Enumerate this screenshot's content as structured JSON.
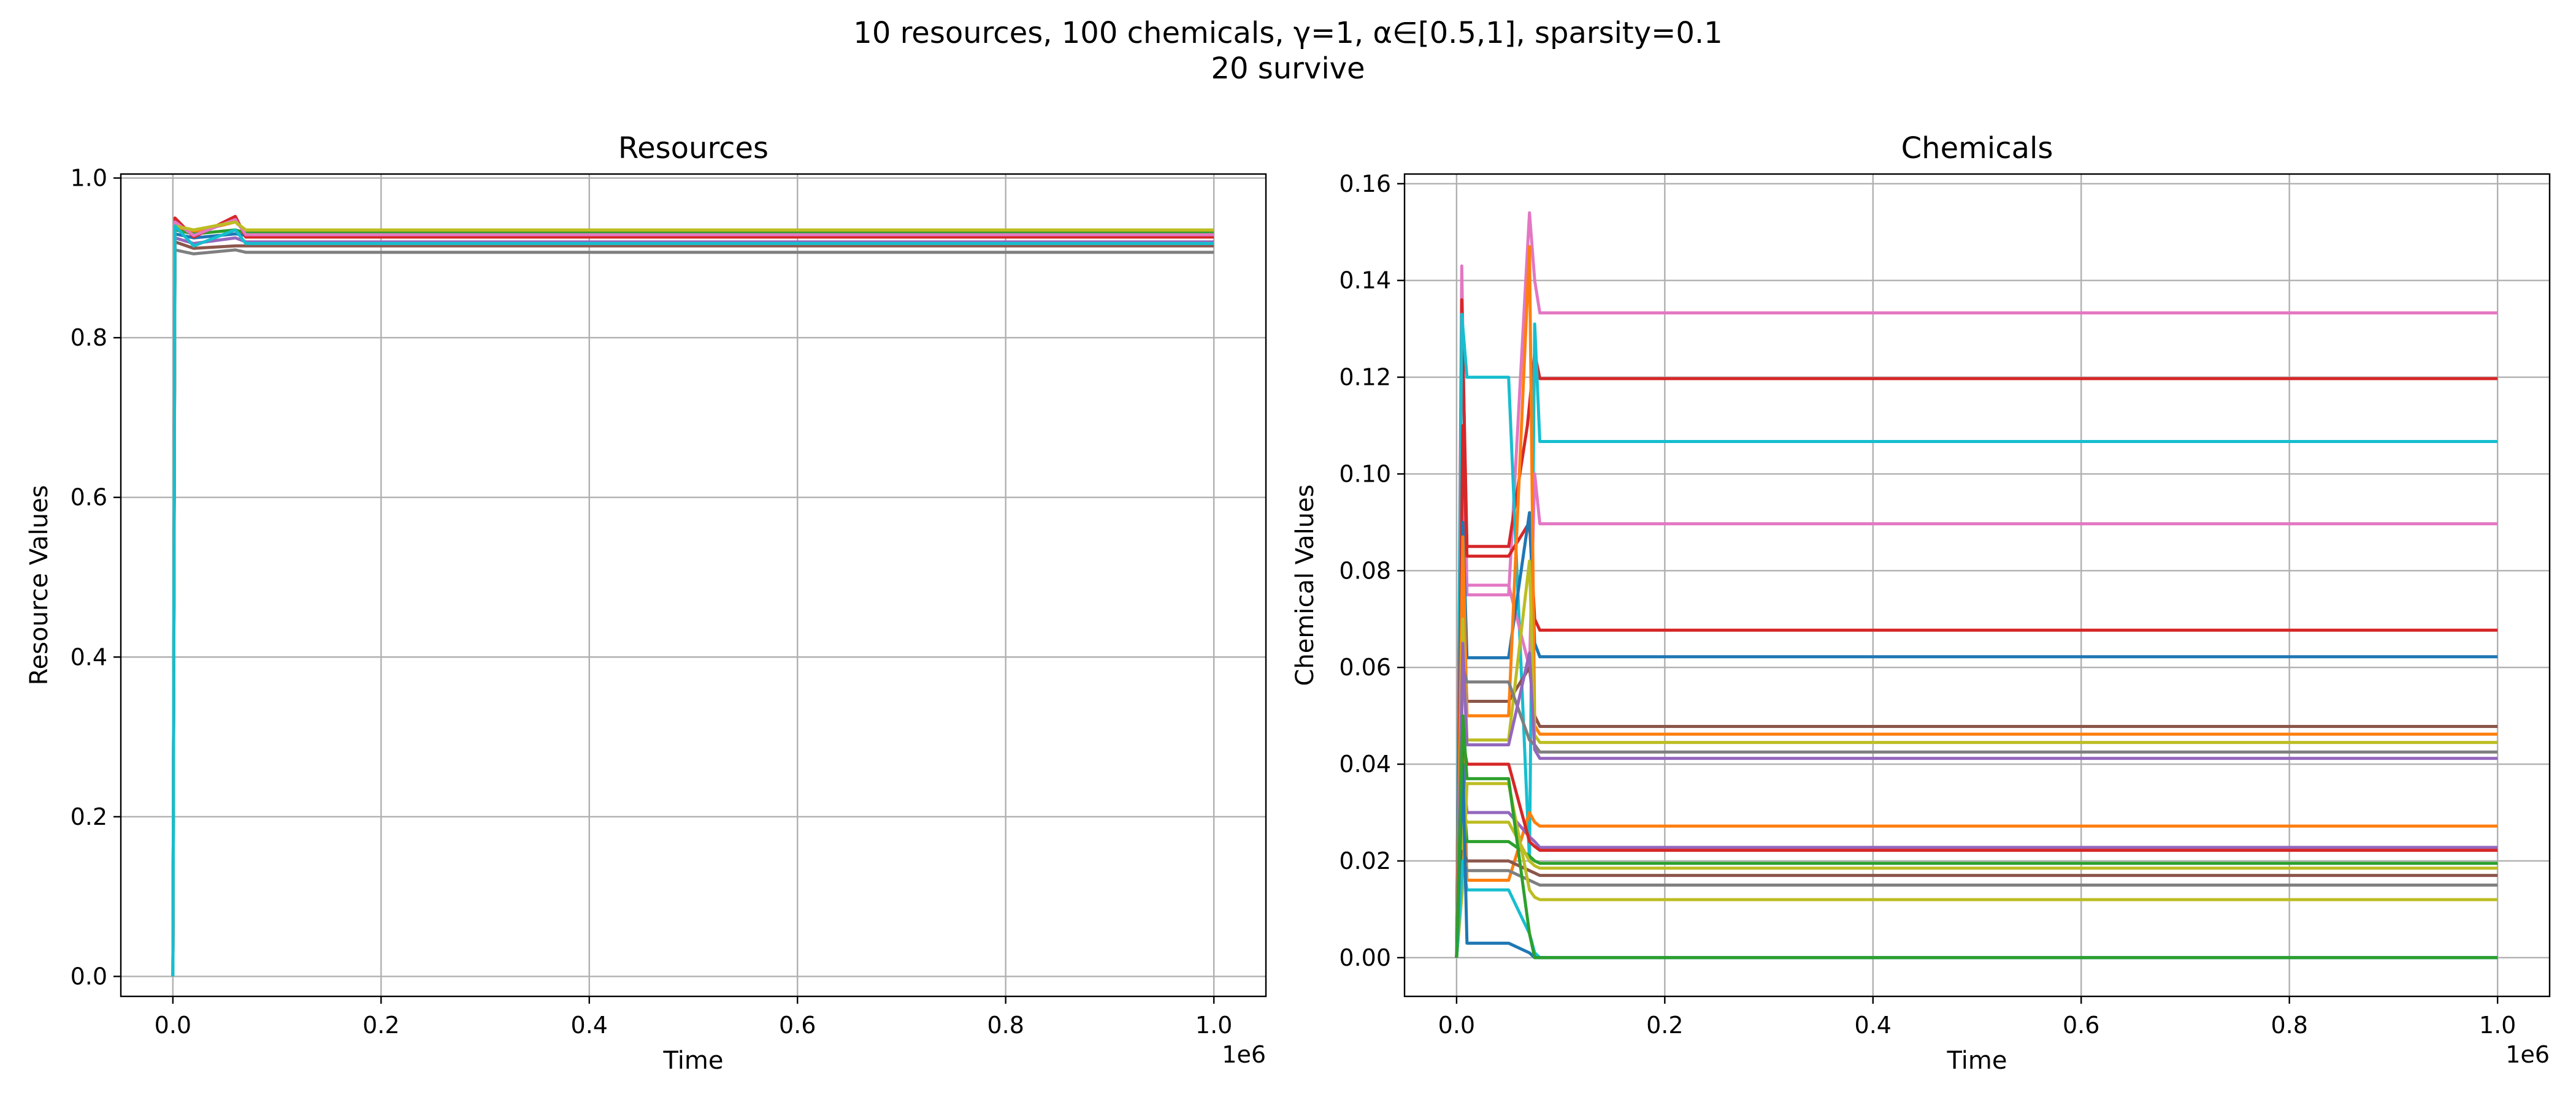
{
  "figure": {
    "title_line1": "10 resources, 100 chemicals, γ=1, α∈[0.5,1], sparsity=0.1",
    "title_line2": "20 survive"
  },
  "palette": [
    "#1f77b4",
    "#ff7f0e",
    "#2ca02c",
    "#d62728",
    "#9467bd",
    "#8c564b",
    "#e377c2",
    "#7f7f7f",
    "#bcbd22",
    "#17becf"
  ],
  "chart_data": [
    {
      "type": "line",
      "title": "Resources",
      "xlabel": "Time",
      "ylabel": "Resource Values",
      "x_offset_label": "1e6",
      "xlim": [
        -0.05,
        1.05
      ],
      "ylim": [
        -0.025,
        1.005
      ],
      "xticks": [
        0.0,
        0.2,
        0.4,
        0.6,
        0.8,
        1.0
      ],
      "xtick_labels": [
        "0.0",
        "0.2",
        "0.4",
        "0.6",
        "0.8",
        "1.0"
      ],
      "yticks": [
        0.0,
        0.2,
        0.4,
        0.6,
        0.8,
        1.0
      ],
      "ytick_labels": [
        "0.0",
        "0.2",
        "0.4",
        "0.6",
        "0.8",
        "1.0"
      ],
      "grid": true,
      "x_units": "1e6",
      "series": [
        {
          "color": "#1f77b4",
          "x": [
            0,
            0.002,
            0.02,
            0.06,
            0.07,
            1.0
          ],
          "y": [
            0,
            0.93,
            0.925,
            0.93,
            0.928,
            0.928
          ]
        },
        {
          "color": "#ff7f0e",
          "x": [
            0,
            0.002,
            0.02,
            0.06,
            0.07,
            1.0
          ],
          "y": [
            0,
            0.94,
            0.932,
            0.945,
            0.933,
            0.933
          ]
        },
        {
          "color": "#2ca02c",
          "x": [
            0,
            0.002,
            0.02,
            0.06,
            0.07,
            1.0
          ],
          "y": [
            0,
            0.935,
            0.93,
            0.935,
            0.931,
            0.931
          ]
        },
        {
          "color": "#d62728",
          "x": [
            0,
            0.002,
            0.02,
            0.06,
            0.07,
            1.0
          ],
          "y": [
            0,
            0.95,
            0.926,
            0.952,
            0.926,
            0.926
          ]
        },
        {
          "color": "#9467bd",
          "x": [
            0,
            0.002,
            0.02,
            0.06,
            0.07,
            1.0
          ],
          "y": [
            0,
            0.925,
            0.918,
            0.925,
            0.92,
            0.92
          ]
        },
        {
          "color": "#8c564b",
          "x": [
            0,
            0.002,
            0.02,
            0.06,
            0.07,
            1.0
          ],
          "y": [
            0,
            0.92,
            0.912,
            0.915,
            0.915,
            0.915
          ]
        },
        {
          "color": "#e377c2",
          "x": [
            0,
            0.002,
            0.02,
            0.06,
            0.07,
            1.0
          ],
          "y": [
            0,
            0.945,
            0.928,
            0.948,
            0.929,
            0.929
          ]
        },
        {
          "color": "#7f7f7f",
          "x": [
            0,
            0.002,
            0.02,
            0.06,
            0.07,
            1.0
          ],
          "y": [
            0,
            0.91,
            0.905,
            0.91,
            0.907,
            0.907
          ]
        },
        {
          "color": "#bcbd22",
          "x": [
            0,
            0.002,
            0.02,
            0.06,
            0.07,
            1.0
          ],
          "y": [
            0,
            0.94,
            0.935,
            0.945,
            0.935,
            0.935
          ]
        },
        {
          "color": "#17becf",
          "x": [
            0,
            0.002,
            0.02,
            0.06,
            0.07,
            1.0
          ],
          "y": [
            0,
            0.94,
            0.915,
            0.935,
            0.918,
            0.918
          ]
        }
      ]
    },
    {
      "type": "line",
      "title": "Chemicals",
      "xlabel": "Time",
      "ylabel": "Chemical Values",
      "x_offset_label": "1e6",
      "xlim": [
        -0.05,
        1.05
      ],
      "ylim": [
        -0.008,
        0.162
      ],
      "xticks": [
        0.0,
        0.2,
        0.4,
        0.6,
        0.8,
        1.0
      ],
      "xtick_labels": [
        "0.0",
        "0.2",
        "0.4",
        "0.6",
        "0.8",
        "1.0"
      ],
      "yticks": [
        0.0,
        0.02,
        0.04,
        0.06,
        0.08,
        0.1,
        0.12,
        0.14,
        0.16
      ],
      "ytick_labels": [
        "0.00",
        "0.02",
        "0.04",
        "0.06",
        "0.08",
        "0.10",
        "0.12",
        "0.14",
        "0.16"
      ],
      "grid": true,
      "x_units": "1e6",
      "series": [
        {
          "color": "#e377c2",
          "x": [
            0,
            0.005,
            0.01,
            0.05,
            0.07,
            0.075,
            0.08,
            1.0
          ],
          "y": [
            0,
            0.143,
            0.075,
            0.075,
            0.154,
            0.14,
            0.1333,
            0.1333
          ]
        },
        {
          "color": "#d62728",
          "x": [
            0,
            0.005,
            0.01,
            0.05,
            0.068,
            0.075,
            0.08,
            1.0
          ],
          "y": [
            0,
            0.136,
            0.085,
            0.085,
            0.11,
            0.125,
            0.1197,
            0.1197
          ]
        },
        {
          "color": "#17becf",
          "x": [
            0,
            0.005,
            0.01,
            0.05,
            0.07,
            0.075,
            0.08,
            1.0
          ],
          "y": [
            0,
            0.133,
            0.12,
            0.12,
            0.02,
            0.131,
            0.1067,
            0.1067
          ]
        },
        {
          "color": "#e377c2",
          "x": [
            0,
            0.006,
            0.01,
            0.05,
            0.07,
            0.075,
            0.08,
            1.0
          ],
          "y": [
            0,
            0.095,
            0.077,
            0.077,
            0.06,
            0.1,
            0.0897,
            0.0897
          ]
        },
        {
          "color": "#d62728",
          "x": [
            0,
            0.006,
            0.01,
            0.05,
            0.07,
            0.075,
            0.08,
            1.0
          ],
          "y": [
            0,
            0.11,
            0.083,
            0.083,
            0.09,
            0.07,
            0.0677,
            0.0677
          ]
        },
        {
          "color": "#1f77b4",
          "x": [
            0,
            0.006,
            0.01,
            0.05,
            0.07,
            0.075,
            0.08,
            1.0
          ],
          "y": [
            0,
            0.09,
            0.062,
            0.062,
            0.092,
            0.065,
            0.0622,
            0.0622
          ]
        },
        {
          "color": "#8c564b",
          "x": [
            0,
            0.006,
            0.01,
            0.05,
            0.07,
            0.075,
            0.08,
            1.0
          ],
          "y": [
            0,
            0.07,
            0.053,
            0.053,
            0.06,
            0.05,
            0.0478,
            0.0478
          ]
        },
        {
          "color": "#ff7f0e",
          "x": [
            0,
            0.006,
            0.01,
            0.05,
            0.07,
            0.075,
            0.08,
            1.0
          ],
          "y": [
            0,
            0.087,
            0.05,
            0.05,
            0.147,
            0.048,
            0.0462,
            0.0462
          ]
        },
        {
          "color": "#bcbd22",
          "x": [
            0,
            0.006,
            0.01,
            0.05,
            0.07,
            0.075,
            0.08,
            1.0
          ],
          "y": [
            0,
            0.07,
            0.045,
            0.045,
            0.082,
            0.046,
            0.0445,
            0.0445
          ]
        },
        {
          "color": "#7f7f7f",
          "x": [
            0,
            0.006,
            0.01,
            0.05,
            0.07,
            0.075,
            0.08,
            1.0
          ],
          "y": [
            0,
            0.06,
            0.057,
            0.057,
            0.045,
            0.044,
            0.0425,
            0.0425
          ]
        },
        {
          "color": "#9467bd",
          "x": [
            0,
            0.006,
            0.01,
            0.05,
            0.07,
            0.075,
            0.08,
            1.0
          ],
          "y": [
            0,
            0.065,
            0.044,
            0.044,
            0.063,
            0.043,
            0.0412,
            0.0412
          ]
        },
        {
          "color": "#ff7f0e",
          "x": [
            0,
            0.006,
            0.01,
            0.05,
            0.07,
            0.075,
            0.08,
            1.0
          ],
          "y": [
            0,
            0.05,
            0.016,
            0.016,
            0.03,
            0.028,
            0.0272,
            0.0272
          ]
        },
        {
          "color": "#9467bd",
          "x": [
            0,
            0.006,
            0.01,
            0.05,
            0.07,
            0.075,
            0.08,
            1.0
          ],
          "y": [
            0,
            0.04,
            0.03,
            0.03,
            0.025,
            0.024,
            0.0228,
            0.0228
          ]
        },
        {
          "color": "#d62728",
          "x": [
            0,
            0.006,
            0.01,
            0.05,
            0.07,
            0.075,
            0.08,
            1.0
          ],
          "y": [
            0,
            0.045,
            0.04,
            0.04,
            0.024,
            0.023,
            0.0222,
            0.0222
          ]
        },
        {
          "color": "#2ca02c",
          "x": [
            0,
            0.006,
            0.01,
            0.05,
            0.07,
            0.075,
            0.08,
            1.0
          ],
          "y": [
            0,
            0.035,
            0.024,
            0.024,
            0.021,
            0.02,
            0.0195,
            0.0195
          ]
        },
        {
          "color": "#bcbd22",
          "x": [
            0,
            0.006,
            0.01,
            0.05,
            0.07,
            0.075,
            0.08,
            1.0
          ],
          "y": [
            0,
            0.03,
            0.028,
            0.028,
            0.02,
            0.019,
            0.0185,
            0.0185
          ]
        },
        {
          "color": "#8c564b",
          "x": [
            0,
            0.006,
            0.01,
            0.05,
            0.07,
            0.075,
            0.08,
            1.0
          ],
          "y": [
            0,
            0.022,
            0.02,
            0.02,
            0.018,
            0.0175,
            0.017,
            0.017
          ]
        },
        {
          "color": "#7f7f7f",
          "x": [
            0,
            0.006,
            0.01,
            0.05,
            0.07,
            0.075,
            0.08,
            1.0
          ],
          "y": [
            0,
            0.02,
            0.018,
            0.018,
            0.016,
            0.0155,
            0.015,
            0.015
          ]
        },
        {
          "color": "#bcbd22",
          "x": [
            0,
            0.006,
            0.01,
            0.05,
            0.07,
            0.075,
            0.08,
            1.0
          ],
          "y": [
            0,
            0.015,
            0.036,
            0.036,
            0.014,
            0.0125,
            0.012,
            0.012
          ]
        },
        {
          "color": "#17becf",
          "x": [
            0,
            0.006,
            0.01,
            0.05,
            0.07,
            0.075,
            0.08,
            1.0
          ],
          "y": [
            0,
            0.02,
            0.014,
            0.014,
            0.005,
            0.001,
            0.0,
            0.0
          ]
        },
        {
          "color": "#1f77b4",
          "x": [
            0,
            0.006,
            0.01,
            0.05,
            0.07,
            0.075,
            0.08,
            1.0
          ],
          "y": [
            0,
            0.04,
            0.003,
            0.003,
            0.001,
            0.0,
            0.0,
            0.0
          ]
        },
        {
          "color": "#2ca02c",
          "x": [
            0,
            0.006,
            0.01,
            0.05,
            0.07,
            0.075,
            0.08,
            1.0
          ],
          "y": [
            0,
            0.05,
            0.037,
            0.037,
            0.005,
            0.0,
            0.0,
            0.0
          ]
        }
      ]
    }
  ]
}
